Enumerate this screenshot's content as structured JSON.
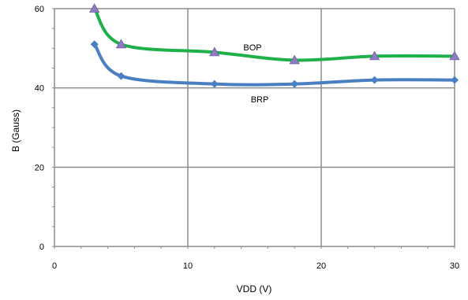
{
  "chart_data": {
    "type": "line",
    "xlabel": "VDD  (V)",
    "ylabel": "B (Gauss)",
    "xlim": [
      0,
      30
    ],
    "ylim": [
      0,
      60
    ],
    "x_ticks": [
      0,
      10,
      20,
      30
    ],
    "y_ticks": [
      0,
      20,
      40,
      60
    ],
    "x_tick_labels": [
      "0",
      "10",
      "20",
      "30"
    ],
    "y_tick_labels": [
      "0",
      "20",
      "40",
      "60"
    ],
    "grid": true,
    "series": [
      {
        "name": "BOP",
        "color": "#1fb04a",
        "marker": "triangle",
        "marker_color": "#8e7cc3",
        "x": [
          3,
          5,
          12,
          18,
          24,
          30
        ],
        "y": [
          60,
          51,
          49,
          47,
          48,
          48
        ]
      },
      {
        "name": "BRP",
        "color": "#4a7fc1",
        "marker": "diamond",
        "marker_color": "#4a7fc1",
        "x": [
          3,
          5,
          12,
          18,
          24,
          30
        ],
        "y": [
          51,
          43,
          41,
          41,
          42,
          42
        ]
      }
    ]
  }
}
